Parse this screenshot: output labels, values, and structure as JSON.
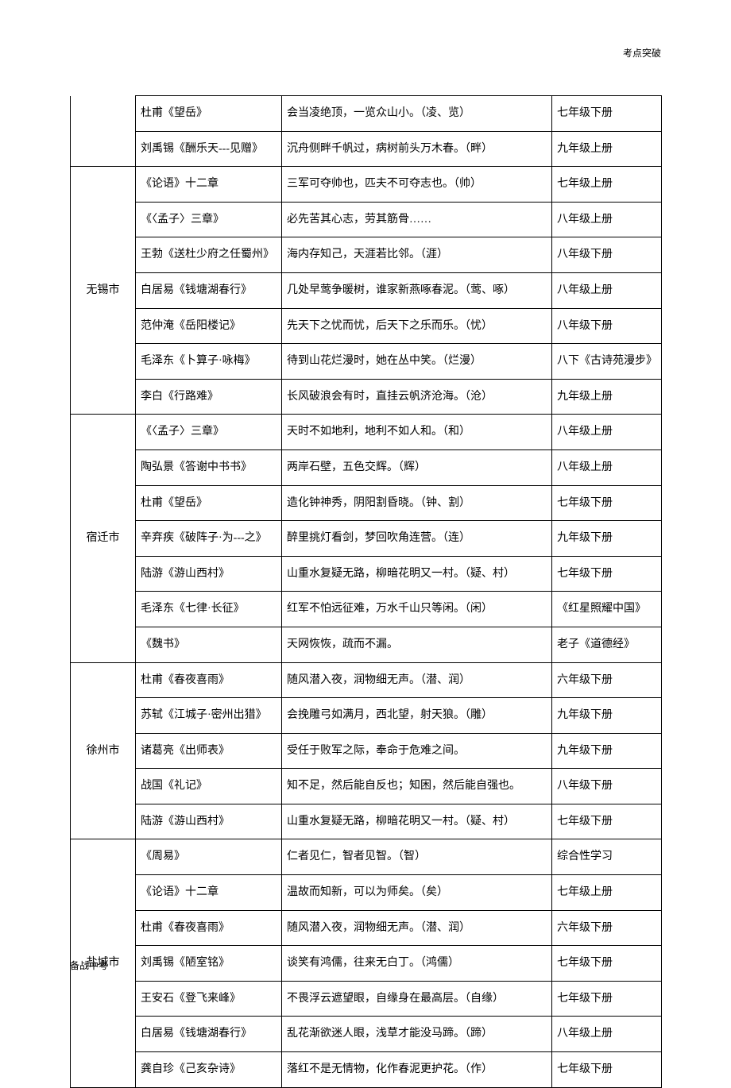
{
  "header_right": "考点突破",
  "footer_left": "备战中考",
  "columns": [
    "city",
    "source",
    "verse",
    "grade"
  ],
  "groups": [
    {
      "city": "",
      "open_top": true,
      "rows": [
        {
          "source": "杜甫《望岳》",
          "verse": "会当凌绝顶，一览众山小。（凌、览）",
          "grade": "七年级下册"
        },
        {
          "source": "刘禹锡《酬乐天---见赠》",
          "verse": "沉舟侧畔千帆过，病树前头万木春。（畔）",
          "grade": "九年级上册"
        }
      ]
    },
    {
      "city": "无锡市",
      "rows": [
        {
          "source": "《论语》十二章",
          "verse": "三军可夺帅也，匹夫不可夺志也。（帅）",
          "grade": "七年级上册"
        },
        {
          "source": "《〈孟子〉三章》",
          "verse": "必先苦其心志，劳其筋骨……",
          "grade": "八年级上册"
        },
        {
          "source": "王勃《送杜少府之任蜀州》",
          "verse": "海内存知己，天涯若比邻。（涯）",
          "grade": "八年级下册"
        },
        {
          "source": "白居易《钱塘湖春行》",
          "verse": "几处早莺争暖树，谁家新燕啄春泥。（莺、啄）",
          "grade": "八年级上册"
        },
        {
          "source": "范仲淹《岳阳楼记》",
          "verse": "先天下之忧而忧，后天下之乐而乐。（忧）",
          "grade": "八年级下册"
        },
        {
          "source": "毛泽东《卜算子·咏梅》",
          "verse": "待到山花烂漫时，她在丛中笑。（烂漫）",
          "grade": "八下《古诗苑漫步》"
        },
        {
          "source": "李白《行路难》",
          "verse": "长风破浪会有时，直挂云帆济沧海。（沧）",
          "grade": "九年级上册"
        }
      ]
    },
    {
      "city": "宿迁市",
      "rows": [
        {
          "source": "《〈孟子〉三章》",
          "verse": "天时不如地利，地利不如人和。（和）",
          "grade": "八年级上册"
        },
        {
          "source": "陶弘景《答谢中书书》",
          "verse": "两岸石壁，五色交辉。（辉）",
          "grade": "八年级上册"
        },
        {
          "source": "杜甫《望岳》",
          "verse": "造化钟神秀，阴阳割昏晓。（钟、割）",
          "grade": "七年级下册"
        },
        {
          "source": "辛弃疾《破阵子·为---之》",
          "verse": "醉里挑灯看剑，梦回吹角连营。（连）",
          "grade": "九年级下册"
        },
        {
          "source": "陆游《游山西村》",
          "verse": "山重水复疑无路，柳暗花明又一村。（疑、村）",
          "grade": "七年级下册"
        },
        {
          "source": "毛泽东《七律·长征》",
          "verse": "红军不怕远征难，万水千山只等闲。（闲）",
          "grade": "《红星照耀中国》"
        },
        {
          "source": "《魏书》",
          "verse": "天网恢恢，疏而不漏。",
          "grade": "老子《道德经》"
        }
      ]
    },
    {
      "city": "徐州市",
      "rows": [
        {
          "source": "杜甫《春夜喜雨》",
          "verse": "随风潜入夜，润物细无声。（潜、润）",
          "grade": "六年级下册"
        },
        {
          "source": "苏轼《江城子·密州出猎》",
          "verse": "会挽雕弓如满月，西北望，射天狼。（雕）",
          "grade": "九年级下册"
        },
        {
          "source": "诸葛亮《出师表》",
          "verse": "受任于败军之际，奉命于危难之间。",
          "grade": "九年级下册"
        },
        {
          "source": "战国《礼记》",
          "verse": "知不足，然后能自反也；知困，然后能自强也。",
          "grade": "八年级下册"
        },
        {
          "source": "陆游《游山西村》",
          "verse": "山重水复疑无路，柳暗花明又一村。（疑、村）",
          "grade": "七年级下册"
        }
      ]
    },
    {
      "city": "盐城市",
      "rows": [
        {
          "source": "《周易》",
          "verse": "仁者见仁，智者见智。（智）",
          "grade": "综合性学习"
        },
        {
          "source": "《论语》十二章",
          "verse": "温故而知新，可以为师矣。（矣）",
          "grade": "七年级上册"
        },
        {
          "source": "杜甫《春夜喜雨》",
          "verse": "随风潜入夜，润物细无声。（潜、润）",
          "grade": "六年级下册"
        },
        {
          "source": "刘禹锡《陋室铭》",
          "verse": "谈笑有鸿儒，往来无白丁。（鸿儒）",
          "grade": "七年级下册"
        },
        {
          "source": "王安石《登飞来峰》",
          "verse": "不畏浮云遮望眼，自缘身在最高层。（自缘）",
          "grade": "七年级下册"
        },
        {
          "source": "白居易《钱塘湖春行》",
          "verse": "乱花渐欲迷人眼，浅草才能没马蹄。（蹄）",
          "grade": "八年级上册"
        },
        {
          "source": "龚自珍《己亥杂诗》",
          "verse": "落红不是无情物，化作春泥更护花。（作）",
          "grade": "七年级下册"
        }
      ]
    }
  ]
}
